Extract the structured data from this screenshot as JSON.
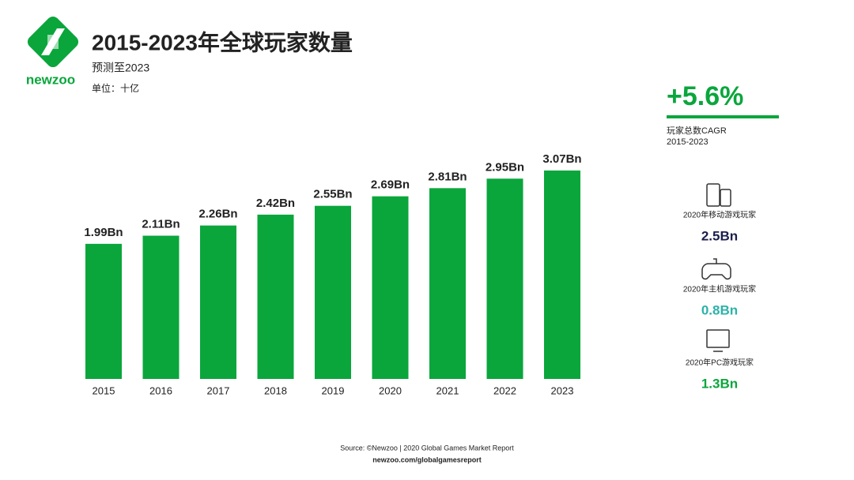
{
  "logo": "newzoo",
  "chart_data": {
    "type": "bar",
    "title": "2015-2023年全球玩家数量",
    "subtitle": "预测至2023",
    "unit": "单位：十亿",
    "categories": [
      "2015",
      "2016",
      "2017",
      "2018",
      "2019",
      "2020",
      "2021",
      "2022",
      "2023"
    ],
    "values": [
      1.99,
      2.11,
      2.26,
      2.42,
      2.55,
      2.69,
      2.81,
      2.95,
      3.07
    ],
    "value_labels": [
      "1.99Bn",
      "2.11Bn",
      "2.26Bn",
      "2.42Bn",
      "2.55Bn",
      "2.69Bn",
      "2.81Bn",
      "2.95Bn",
      "3.07Bn"
    ],
    "color": "#0aa63c"
  },
  "sidebar": {
    "cagr": "+5.6%",
    "cagr_label": "玩家总数CAGR",
    "cagr_period": "2015-2023",
    "items": [
      {
        "label": "2020年移动游戏玩家",
        "value": "2.5Bn",
        "color": "#1b1f4d"
      },
      {
        "label": "2020年主机游戏玩家",
        "value": "0.8Bn",
        "color": "#2bb3a8"
      },
      {
        "label": "2020年PC游戏玩家",
        "value": "1.3Bn",
        "color": "#0aa63c"
      }
    ]
  },
  "source": "Source: ©Newzoo | 2020 Global Games Market Report",
  "url": "newzoo.com/globalgamesreport"
}
